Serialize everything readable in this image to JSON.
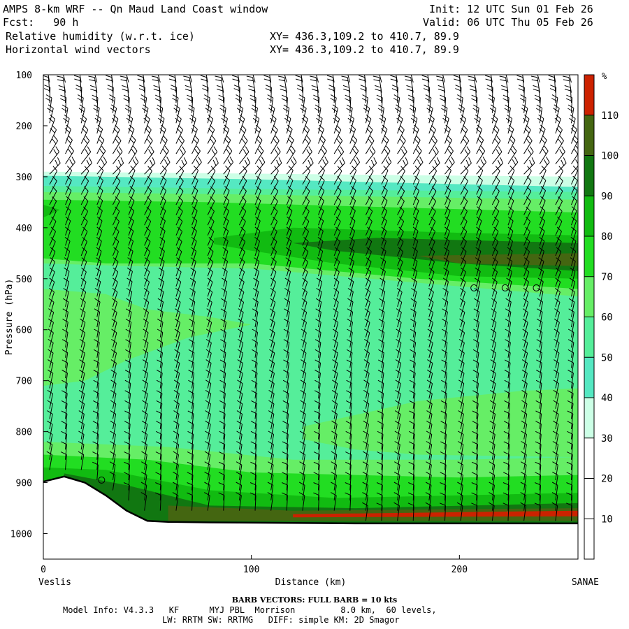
{
  "header": {
    "title": "AMPS 8-km WRF -- Qn Maud Land Coast window",
    "init": "Init: 12 UTC Sun 01 Feb 26",
    "fcst": "Fcst:   90 h",
    "valid": "Valid: 06 UTC Thu 05 Feb 26",
    "field1": "Relative humidity (w.r.t. ice)",
    "field2": "Horizontal wind vectors",
    "xy1": "XY= 436.3,109.2 to 410.7, 89.9",
    "xy2": "XY= 436.3,109.2 to 410.7, 89.9"
  },
  "footer": {
    "barb_note": "BARB VECTORS:  FULL BARB = 10 kts",
    "model_info": "Model Info: V4.3.3   KF      MYJ PBL  Morrison         8.0 km,  60 levels,",
    "model_info2": "LW: RRTM SW: RRTMG   DIFF: simple KM: 2D Smagor"
  },
  "chart_data": {
    "type": "heatmap",
    "title": "Relative humidity (w.r.t. ice)",
    "xlabel": "Distance (km)",
    "ylabel": "Pressure (hPa)",
    "x_left_label": "Veslis",
    "x_right_label": "SANAE",
    "xlim": [
      0,
      257
    ],
    "ylim": [
      1050,
      100
    ],
    "x_ticks": [
      0,
      100,
      200
    ],
    "y_ticks": [
      100,
      200,
      300,
      400,
      500,
      600,
      700,
      800,
      900,
      1000
    ],
    "colorbar_unit": "%",
    "colorbar_levels": [
      10,
      20,
      30,
      40,
      50,
      60,
      70,
      80,
      90,
      100,
      110
    ],
    "colorbar_colors": [
      "#ffffff",
      "#ffffff",
      "#ffffff",
      "#ccffe6",
      "#55e8c2",
      "#55ee9a",
      "#66ee66",
      "#22dd22",
      "#11bb11",
      "#117711",
      "#446611",
      "#cc2200"
    ],
    "terrain_surface_hPa": [
      [
        0,
        898
      ],
      [
        10,
        888
      ],
      [
        20,
        900
      ],
      [
        30,
        925
      ],
      [
        40,
        955
      ],
      [
        50,
        975
      ],
      [
        60,
        977
      ],
      [
        80,
        978
      ],
      [
        150,
        980
      ],
      [
        257,
        980
      ]
    ],
    "calm_markers": [
      [
        28,
        895
      ],
      [
        207,
        518
      ],
      [
        222,
        518
      ],
      [
        237,
        518
      ]
    ]
  }
}
